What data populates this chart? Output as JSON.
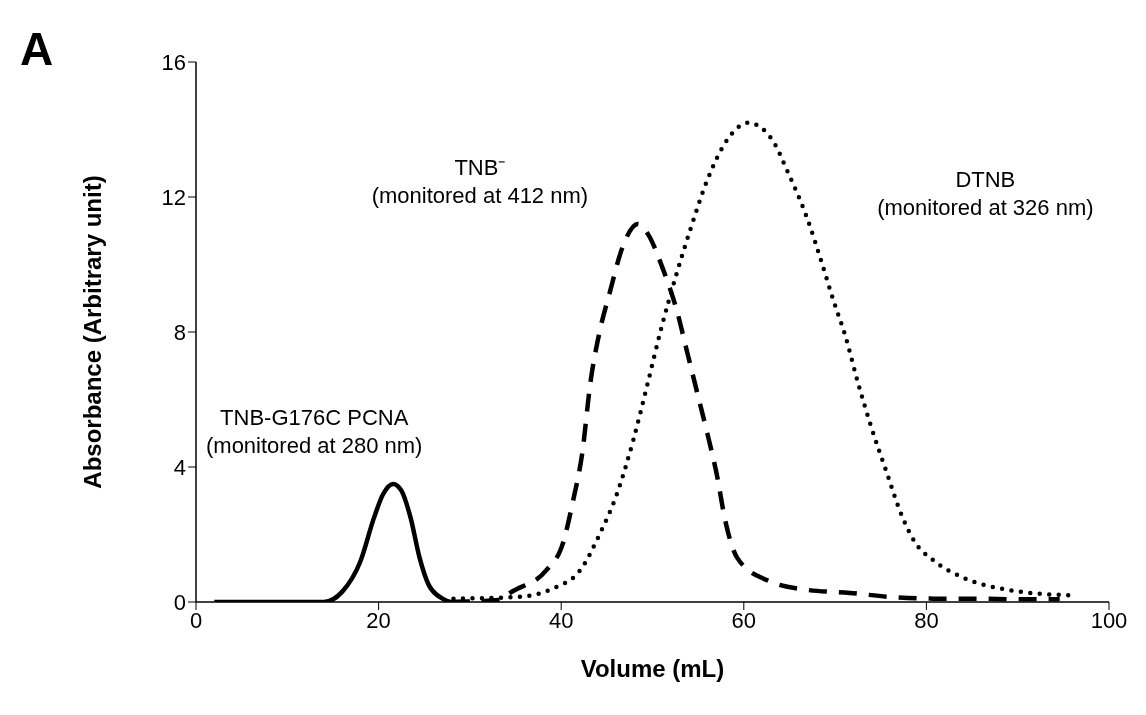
{
  "chart_data": {
    "type": "line",
    "xlabel": "Volume (mL)",
    "ylabel": "Absorbance (Arbitrary unit)",
    "annotations": [
      "A"
    ],
    "xlim": [
      0,
      100
    ],
    "xticks": [
      0,
      20,
      40,
      60,
      80,
      100
    ],
    "ylim": [
      0,
      16
    ],
    "yticks": [
      0,
      4,
      8,
      12,
      16
    ],
    "marker": "none",
    "series": [
      {
        "name": "TNB-G176C PCNA (monitored at 280 nm)",
        "color": "#000000",
        "line_style": "solid",
        "x": [
          2,
          10,
          14,
          16,
          18,
          19.5,
          20.5,
          21.6,
          22.5,
          23.5,
          24.5,
          25.5,
          27,
          28,
          30
        ],
        "values": [
          0,
          0,
          0,
          0.3,
          1.2,
          2.5,
          3.2,
          3.5,
          3.3,
          2.5,
          1.3,
          0.5,
          0.1,
          0,
          0
        ]
      },
      {
        "name": "TNB⁻ (monitored at 412 nm)",
        "color": "#000000",
        "line_style": "dashed",
        "x": [
          28,
          33.3,
          34.4,
          38.4,
          40.2,
          41.3,
          42.3,
          43.2,
          44.2,
          45.3,
          46.7,
          48.4,
          49.5,
          51.1,
          52.7,
          53.8,
          54.9,
          56,
          57.1,
          57.9,
          59.3,
          62.5,
          66.9,
          71.6,
          76,
          80.7,
          85.5,
          90,
          94.6
        ],
        "values": [
          0,
          0.06,
          0.27,
          0.95,
          1.75,
          3,
          4.4,
          6.5,
          8,
          9.15,
          10.5,
          11.2,
          10.9,
          9.9,
          8.6,
          7.4,
          6.2,
          5,
          3.7,
          2.5,
          1.3,
          0.65,
          0.36,
          0.27,
          0.15,
          0.1,
          0.1,
          0.08,
          0.08
        ]
      },
      {
        "name": "DTNB (monitored at 326 nm)",
        "color": "#000000",
        "line_style": "dotted",
        "x": [
          28.2,
          35.2,
          39.1,
          42.1,
          44.2,
          46.1,
          47.9,
          49.4,
          51,
          52.5,
          54.1,
          56,
          58.2,
          60.5,
          63.1,
          64.8,
          66.9,
          68.6,
          69.8,
          71.1,
          72.5,
          74,
          75.7,
          77.1,
          78.8,
          80.7,
          84.2,
          88.1,
          92.1,
          96.1
        ],
        "values": [
          0.1,
          0.15,
          0.4,
          0.95,
          2,
          3.2,
          4.8,
          6.4,
          8.15,
          9.6,
          11,
          12.5,
          13.7,
          14.2,
          13.7,
          12.75,
          11.4,
          10,
          8.95,
          7.9,
          6.5,
          5.15,
          3.8,
          2.7,
          1.75,
          1.25,
          0.7,
          0.4,
          0.25,
          0.2
        ]
      }
    ]
  }
}
